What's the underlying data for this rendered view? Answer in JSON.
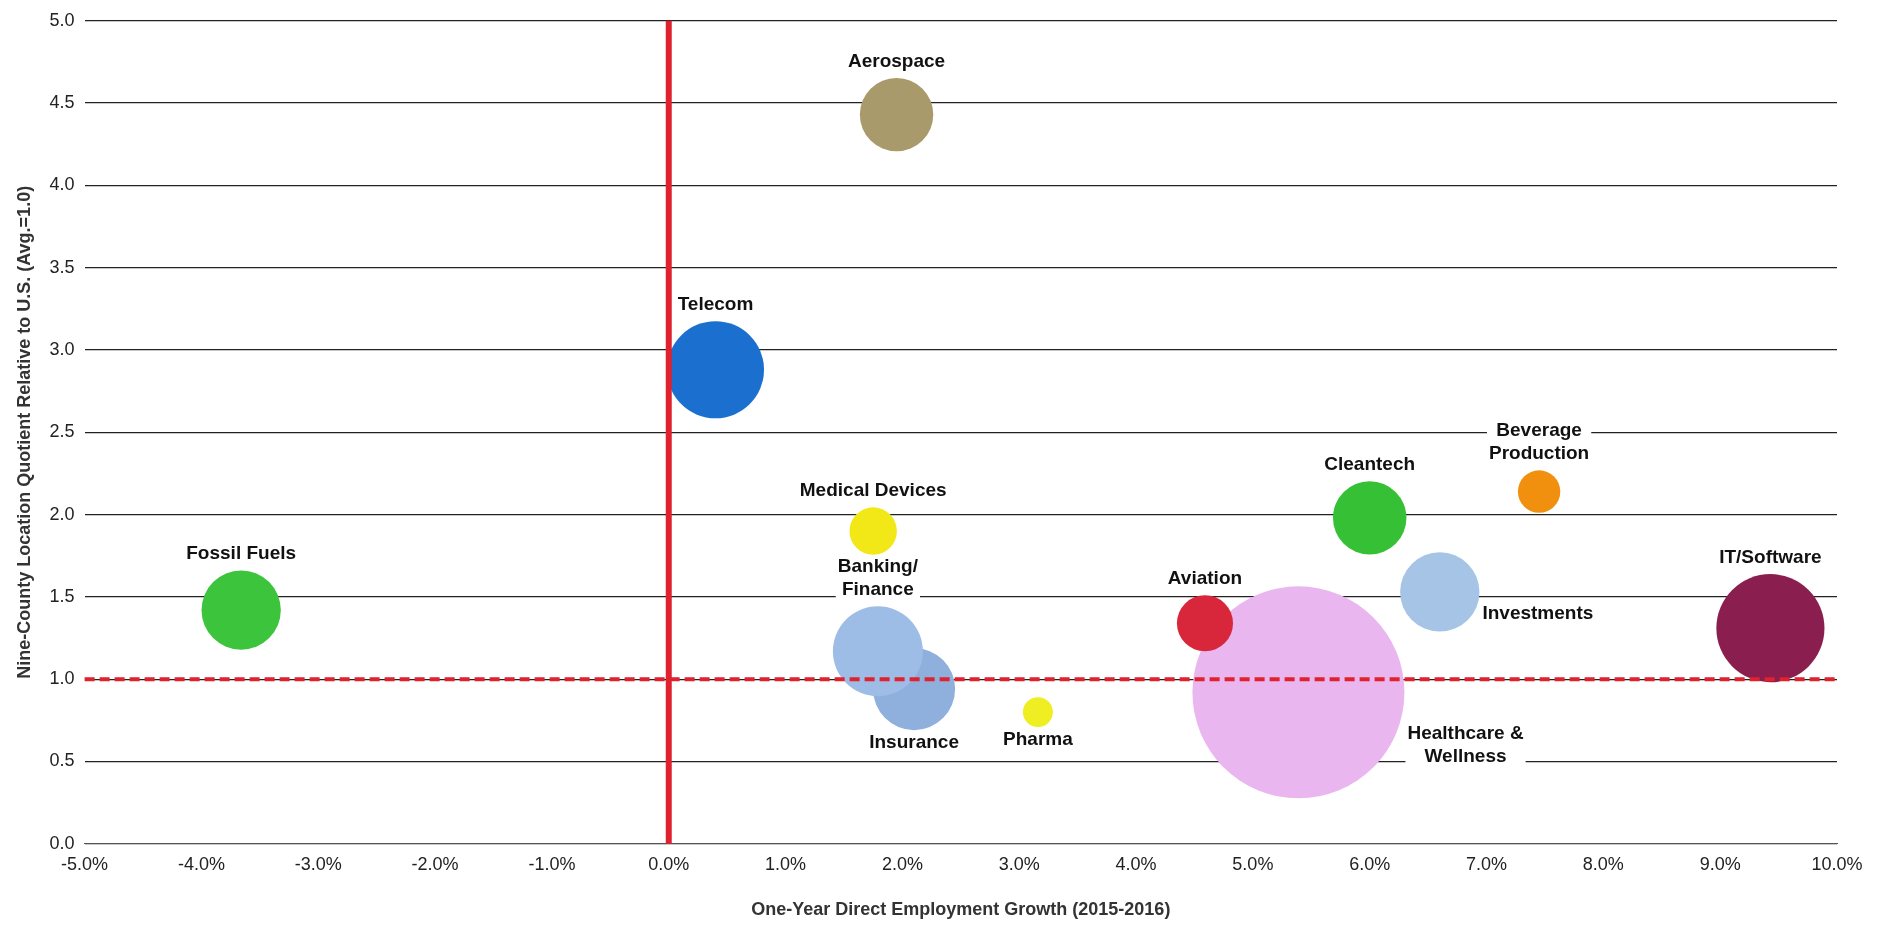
{
  "chart_data": {
    "type": "bubble",
    "xlabel": "One-Year Direct Employment Growth (2015-2016)",
    "ylabel": "Nine-County Location Quotient Relative to U.S. (Avg.=1.0)",
    "xlim": [
      -5,
      10
    ],
    "xticks": [
      {
        "value": -5,
        "label": "-5.0%"
      },
      {
        "value": -4,
        "label": "-4.0%"
      },
      {
        "value": -3,
        "label": "-3.0%"
      },
      {
        "value": -2,
        "label": "-2.0%"
      },
      {
        "value": -1,
        "label": "-1.0%"
      },
      {
        "value": 0,
        "label": "0.0%"
      },
      {
        "value": 1,
        "label": "1.0%"
      },
      {
        "value": 2,
        "label": "2.0%"
      },
      {
        "value": 3,
        "label": "3.0%"
      },
      {
        "value": 4,
        "label": "4.0%"
      },
      {
        "value": 5,
        "label": "5.0%"
      },
      {
        "value": 6,
        "label": "6.0%"
      },
      {
        "value": 7,
        "label": "7.0%"
      },
      {
        "value": 8,
        "label": "8.0%"
      },
      {
        "value": 9,
        "label": "9.0%"
      },
      {
        "value": 10,
        "label": "10.0%"
      }
    ],
    "ylim": [
      0,
      5
    ],
    "yticks": [
      {
        "value": 0,
        "label": "0.0"
      },
      {
        "value": 0.5,
        "label": "0.5"
      },
      {
        "value": 1,
        "label": "1.0"
      },
      {
        "value": 1.5,
        "label": "1.5"
      },
      {
        "value": 2,
        "label": "2.0"
      },
      {
        "value": 2.5,
        "label": "2.5"
      },
      {
        "value": 3,
        "label": "3.0"
      },
      {
        "value": 3.5,
        "label": "3.5"
      },
      {
        "value": 4,
        "label": "4.0"
      },
      {
        "value": 4.5,
        "label": "4.5"
      },
      {
        "value": 5,
        "label": "5.0"
      }
    ],
    "grid": "y",
    "legend": false,
    "ref_lines": [
      {
        "axis": "x",
        "value": 0,
        "color": "#e0212e",
        "line_style": "solid"
      },
      {
        "axis": "y",
        "value": 1,
        "color": "#e0212e",
        "line_style": "dashed"
      }
    ],
    "series": [
      {
        "name": "Fossil Fuels",
        "color": "#3cc43c",
        "x": [
          -3.66
        ],
        "values": [
          1.42
        ],
        "sizes": [
          0.14
        ]
      },
      {
        "name": "Aerospace",
        "color": "#a89a6a",
        "x": [
          1.95
        ],
        "values": [
          4.43
        ],
        "sizes": [
          0.12
        ]
      },
      {
        "name": "Telecom",
        "color": "#1a6fcf",
        "x": [
          0.4
        ],
        "values": [
          2.88
        ],
        "sizes": [
          0.21
        ]
      },
      {
        "name": "Medical Devices",
        "color": "#f2e818",
        "x": [
          1.75
        ],
        "values": [
          1.9
        ],
        "sizes": [
          0.05
        ]
      },
      {
        "name": "Banking/\nFinance",
        "color": "#9dbde6",
        "x": [
          1.79
        ],
        "values": [
          1.17
        ],
        "sizes": [
          0.18
        ]
      },
      {
        "name": "Insurance",
        "color": "#8fb0dc",
        "x": [
          2.1
        ],
        "values": [
          0.94
        ],
        "sizes": [
          0.15
        ]
      },
      {
        "name": "Pharma",
        "color": "#eeee22",
        "x": [
          3.16
        ],
        "values": [
          0.8
        ],
        "sizes": [
          0.02
        ]
      },
      {
        "name": "Aviation",
        "color": "#d8273a",
        "x": [
          4.59
        ],
        "values": [
          1.34
        ],
        "sizes": [
          0.07
        ]
      },
      {
        "name": "Healthcare &\nWellness",
        "color": "#eab6ef",
        "x": [
          5.39
        ],
        "values": [
          0.92
        ],
        "sizes": [
          1
        ]
      },
      {
        "name": "Cleantech",
        "color": "#35c035",
        "x": [
          6.0
        ],
        "values": [
          1.98
        ],
        "sizes": [
          0.12
        ]
      },
      {
        "name": "Investments",
        "color": "#a6c4e6",
        "x": [
          6.6
        ],
        "values": [
          1.53
        ],
        "sizes": [
          0.14
        ]
      },
      {
        "name": "Beverage\nProduction",
        "color": "#f0900e",
        "x": [
          7.45
        ],
        "values": [
          2.14
        ],
        "sizes": [
          0.04
        ]
      },
      {
        "name": "IT/Software",
        "color": "#8a1f4f",
        "x": [
          9.43
        ],
        "values": [
          1.31
        ],
        "sizes": [
          0.26
        ]
      }
    ]
  }
}
